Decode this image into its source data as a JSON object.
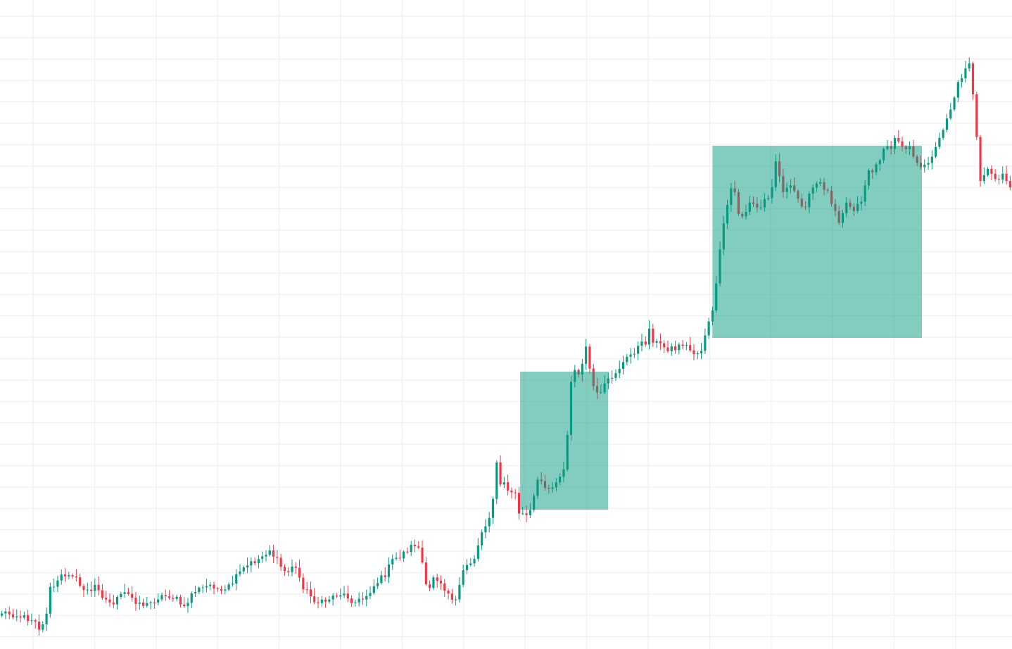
{
  "chart_data": {
    "type": "candlestick",
    "grid": true,
    "legend": "none",
    "axes_labels_visible": false,
    "colors": {
      "background": "#ffffff",
      "grid": "#eeeeee",
      "up": "#089981",
      "down": "#f23645",
      "zone_fill": "#089981",
      "zone_opacity": 0.5
    },
    "ylim": [
      0,
      922
    ],
    "x_count": 272,
    "keypoints": [
      [
        0,
        870
      ],
      [
        6,
        872
      ],
      [
        13,
        878
      ],
      [
        19,
        880
      ],
      [
        21,
        897
      ],
      [
        24,
        880
      ],
      [
        26,
        838
      ],
      [
        30,
        830
      ],
      [
        33,
        818
      ],
      [
        38,
        812
      ],
      [
        43,
        833
      ],
      [
        49,
        842
      ],
      [
        52,
        828
      ],
      [
        56,
        850
      ],
      [
        60,
        858
      ],
      [
        63,
        852
      ],
      [
        68,
        842
      ],
      [
        75,
        856
      ],
      [
        80,
        860
      ],
      [
        86,
        848
      ],
      [
        92,
        846
      ],
      [
        97,
        853
      ],
      [
        100,
        866
      ],
      [
        105,
        840
      ],
      [
        110,
        836
      ],
      [
        116,
        830
      ],
      [
        121,
        845
      ],
      [
        126,
        830
      ],
      [
        132,
        810
      ],
      [
        137,
        800
      ],
      [
        142,
        793
      ],
      [
        147,
        780
      ],
      [
        152,
        800
      ],
      [
        156,
        814
      ],
      [
        158,
        812
      ],
      [
        160,
        800
      ],
      [
        166,
        835
      ],
      [
        170,
        848
      ],
      [
        175,
        858
      ],
      [
        180,
        850
      ],
      [
        185,
        843
      ],
      [
        190,
        847
      ],
      [
        194,
        856
      ],
      [
        198,
        852
      ],
      [
        202,
        840
      ],
      [
        205,
        830
      ],
      [
        210,
        818
      ],
      [
        215,
        795
      ],
      [
        219,
        790
      ],
      [
        223,
        780
      ],
      [
        227,
        773
      ],
      [
        230,
        782
      ],
      [
        233,
        835
      ],
      [
        235,
        838
      ],
      [
        237,
        818
      ],
      [
        241,
        825
      ],
      [
        246,
        845
      ],
      [
        250,
        855
      ],
      [
        253,
        815
      ],
      [
        256,
        800
      ],
      [
        259,
        798
      ],
      [
        262,
        770
      ],
      [
        264,
        754
      ],
      [
        266,
        745
      ],
      [
        268,
        730
      ],
      [
        270,
        705
      ],
      [
        271,
        665
      ],
      [
        272,
        660
      ],
      [
        273,
        655
      ],
      [
        274,
        690
      ],
      [
        276,
        688
      ],
      [
        278,
        695
      ],
      [
        280,
        700
      ],
      [
        282,
        700
      ],
      [
        283,
        718
      ],
      [
        285,
        735
      ],
      [
        287,
        728
      ],
      [
        289,
        736
      ],
      [
        291,
        722
      ],
      [
        294,
        686
      ],
      [
        296,
        682
      ],
      [
        299,
        690
      ],
      [
        302,
        695
      ],
      [
        305,
        680
      ],
      [
        307,
        673
      ],
      [
        309,
        668
      ],
      [
        310,
        640
      ],
      [
        311,
        610
      ],
      [
        312,
        570
      ],
      [
        313,
        535
      ],
      [
        314,
        525
      ],
      [
        315,
        530
      ],
      [
        317,
        528
      ],
      [
        319,
        518
      ],
      [
        320,
        495
      ],
      [
        322,
        500
      ],
      [
        324,
        545
      ],
      [
        326,
        554
      ],
      [
        328,
        568
      ],
      [
        331,
        549
      ],
      [
        335,
        535
      ],
      [
        340,
        520
      ],
      [
        345,
        505
      ],
      [
        350,
        492
      ],
      [
        354,
        485
      ],
      [
        355,
        462
      ],
      [
        357,
        480
      ],
      [
        360,
        488
      ],
      [
        365,
        494
      ],
      [
        370,
        495
      ],
      [
        374,
        488
      ],
      [
        377,
        494
      ],
      [
        379,
        500
      ],
      [
        382,
        502
      ],
      [
        384,
        500
      ],
      [
        386,
        478
      ],
      [
        388,
        460
      ],
      [
        390,
        455
      ],
      [
        392,
        410
      ],
      [
        394,
        370
      ],
      [
        396,
        330
      ],
      [
        398,
        300
      ],
      [
        400,
        272
      ],
      [
        402,
        260
      ],
      [
        404,
        300
      ],
      [
        406,
        305
      ],
      [
        408,
        308
      ],
      [
        410,
        290
      ],
      [
        412,
        288
      ],
      [
        414,
        293
      ],
      [
        416,
        298
      ],
      [
        418,
        290
      ],
      [
        420,
        280
      ],
      [
        423,
        272
      ],
      [
        424,
        210
      ],
      [
        426,
        240
      ],
      [
        428,
        258
      ],
      [
        430,
        275
      ],
      [
        432,
        266
      ],
      [
        435,
        270
      ],
      [
        438,
        286
      ],
      [
        441,
        292
      ],
      [
        443,
        284
      ],
      [
        445,
        270
      ],
      [
        447,
        262
      ],
      [
        450,
        262
      ],
      [
        453,
        268
      ],
      [
        455,
        280
      ],
      [
        458,
        298
      ],
      [
        460,
        312
      ],
      [
        462,
        300
      ],
      [
        464,
        288
      ],
      [
        466,
        292
      ],
      [
        468,
        296
      ],
      [
        470,
        292
      ],
      [
        472,
        286
      ],
      [
        474,
        266
      ],
      [
        476,
        240
      ],
      [
        478,
        245
      ],
      [
        480,
        240
      ],
      [
        482,
        228
      ],
      [
        484,
        208
      ],
      [
        486,
        212
      ],
      [
        488,
        214
      ],
      [
        490,
        200
      ],
      [
        492,
        194
      ],
      [
        494,
        205
      ],
      [
        496,
        208
      ],
      [
        498,
        206
      ],
      [
        500,
        210
      ],
      [
        502,
        230
      ],
      [
        504,
        240
      ],
      [
        506,
        243
      ],
      [
        508,
        230
      ],
      [
        510,
        225
      ],
      [
        512,
        215
      ],
      [
        514,
        208
      ],
      [
        516,
        190
      ],
      [
        518,
        175
      ],
      [
        520,
        160
      ],
      [
        522,
        150
      ],
      [
        524,
        130
      ],
      [
        526,
        115
      ],
      [
        528,
        105
      ],
      [
        530,
        90
      ],
      [
        531,
        85
      ],
      [
        532,
        90
      ],
      [
        534,
        150
      ],
      [
        536,
        210
      ],
      [
        537,
        260
      ],
      [
        538,
        262
      ],
      [
        539,
        255
      ],
      [
        540,
        250
      ],
      [
        542,
        240
      ],
      [
        544,
        248
      ],
      [
        546,
        255
      ],
      [
        548,
        260
      ],
      [
        550,
        248
      ],
      [
        552,
        256
      ],
      [
        554,
        262
      ]
    ],
    "zones": [
      {
        "name": "demand-zone-1",
        "x_start": 0.514,
        "x_end": 0.601,
        "y_top": 528,
        "y_bottom": 724
      },
      {
        "name": "demand-zone-2",
        "x_start": 0.704,
        "x_end": 0.911,
        "y_top": 207,
        "y_bottom": 480
      }
    ]
  }
}
